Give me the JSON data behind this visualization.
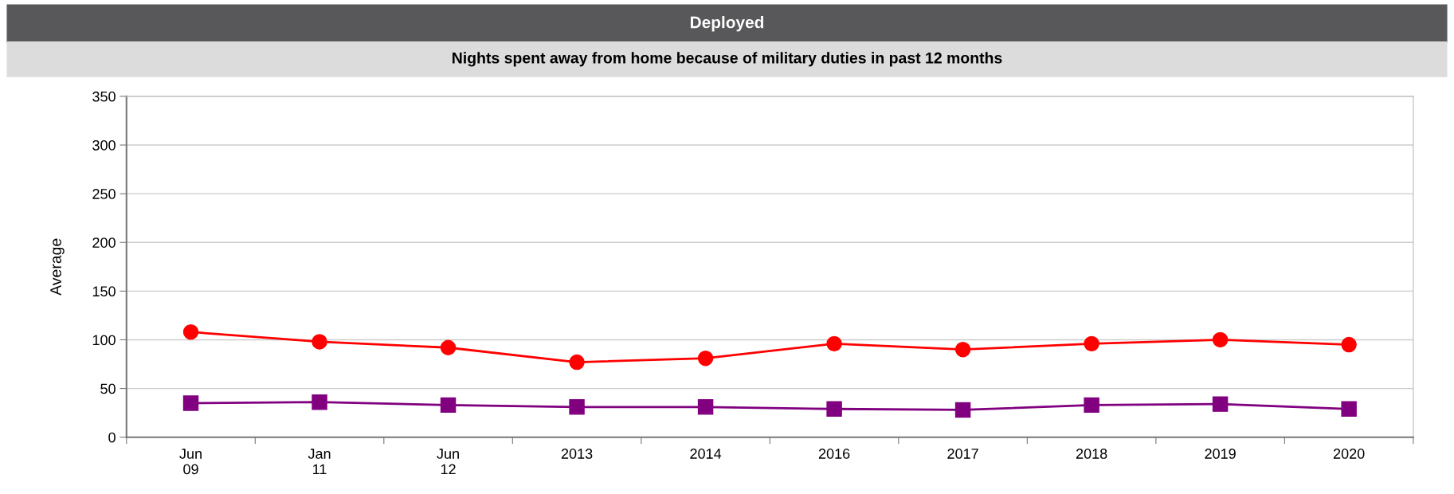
{
  "chart_data": {
    "type": "line",
    "title": "Deployed",
    "subtitle": "Nights spent away from home because of military duties in past 12 months",
    "ylabel": "Average",
    "categories": [
      "Jun\n09",
      "Jan\n11",
      "Jun\n12",
      "2013",
      "2014",
      "2016",
      "2017",
      "2018",
      "2019",
      "2020"
    ],
    "series": [
      {
        "color": "#ff0000",
        "marker": "circle",
        "values": [
          108,
          98,
          92,
          77,
          81,
          96,
          90,
          96,
          100,
          95
        ]
      },
      {
        "color": "#800080",
        "marker": "square",
        "values": [
          35,
          36,
          33,
          31,
          31,
          29,
          28,
          33,
          34,
          29
        ]
      }
    ],
    "ylim": [
      0,
      350
    ],
    "yticks": [
      0,
      50,
      100,
      150,
      200,
      250,
      300,
      350
    ],
    "grid": "y",
    "legend": false
  }
}
